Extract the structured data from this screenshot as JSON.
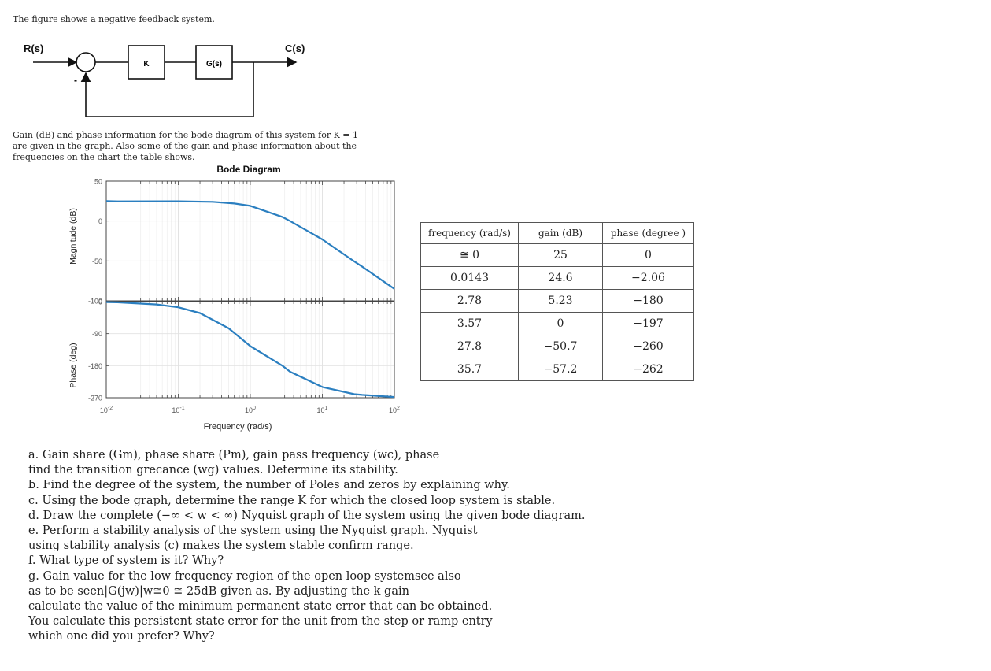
{
  "intro": "The figure shows a negative feedback system.",
  "block_diagram": {
    "input": "R(s)",
    "output": "C(s)",
    "gain_block": "K",
    "plant_block": "G(s)",
    "feedback_sign": "-"
  },
  "description": [
    "Gain (dB) and phase information for the bode diagram of this system for K = 1",
    "are given in the graph. Also some of the gain and phase information about the",
    "frequencies on the chart the table shows."
  ],
  "chart_data": [
    {
      "type": "line",
      "title": "Bode Diagram",
      "panel": "magnitude",
      "ylabel": "Magnitude (dB)",
      "xlabel": "Frequency (rad/s)",
      "x_scale": "log",
      "xlim": [
        0.01,
        100
      ],
      "ylim": [
        -100,
        50
      ],
      "yticks": [
        "50",
        "0",
        "-50",
        "-100"
      ],
      "grid": true,
      "series": [
        {
          "x": [
            0.01,
            0.0143,
            0.1,
            0.3,
            0.6,
            1,
            2.78,
            3.57,
            10,
            27.8,
            35.7,
            100
          ],
          "y": [
            25,
            24.6,
            24.7,
            24.0,
            22.0,
            19.0,
            5.23,
            0,
            -23,
            -50.7,
            -57.2,
            -85
          ]
        }
      ],
      "color": "#2b7fc0"
    },
    {
      "type": "line",
      "panel": "phase",
      "ylabel": "Phase (deg)",
      "xlabel": "Frequency (rad/s)",
      "x_scale": "log",
      "xlim": [
        0.01,
        100
      ],
      "ylim": [
        -270,
        0
      ],
      "yticks": [
        "0",
        "-90",
        "-180",
        "-270"
      ],
      "xticks": [
        {
          "base": "10",
          "exp": "-2"
        },
        {
          "base": "10",
          "exp": "-1"
        },
        {
          "base": "10",
          "exp": "0"
        },
        {
          "base": "10",
          "exp": "1"
        },
        {
          "base": "10",
          "exp": "2"
        }
      ],
      "grid": true,
      "series": [
        {
          "x": [
            0.01,
            0.0143,
            0.05,
            0.1,
            0.2,
            0.5,
            1,
            2.78,
            3.57,
            10,
            27.8,
            35.7,
            100
          ],
          "y": [
            -1.4,
            -2.06,
            -8,
            -16,
            -32,
            -75,
            -125,
            -180,
            -197,
            -240,
            -260,
            -262,
            -268
          ]
        }
      ],
      "color": "#2b7fc0"
    }
  ],
  "table": {
    "headers": [
      "frequency (rad/s)",
      "gain      (dB)",
      "phase (degree  )"
    ],
    "rows": [
      [
        "≅ 0",
        "25",
        "0"
      ],
      [
        "0.0143",
        "24.6",
        "−2.06"
      ],
      [
        "2.78",
        "5.23",
        "−180"
      ],
      [
        "3.57",
        "0",
        "−197"
      ],
      [
        "27.8",
        "−50.7",
        "−260"
      ],
      [
        "35.7",
        "−57.2",
        "−262"
      ]
    ]
  },
  "questions": [
    "a. Gain share (Gm), phase share (Pm), gain pass frequency (wc), phase",
    "find the transition grecance (wg) values. Determine its stability.",
    "b. Find the degree of the system, the number of Poles and zeros by explaining why.",
    "c. Using the bode graph, determine the range K for which the closed loop system is stable.",
    "d. Draw the complete (−∞ < w < ∞) Nyquist graph of the system using the given bode diagram.",
    "e. Perform a stability analysis of the system using the Nyquist graph. Nyquist",
    "using stability analysis (c) makes the system stable confirm range.",
    "f. What type of system is it? Why?",
    "g. Gain value for the low frequency region of the open loop systemsee also",
    "as to be seen|G(jw)|w≅0 ≅ 25dB given as. By adjusting the k gain",
    "calculate the value of the minimum permanent state error that can be obtained.",
    "You calculate this persistent state error for the unit from the step or ramp entry",
    "which one did you prefer? Why?"
  ]
}
